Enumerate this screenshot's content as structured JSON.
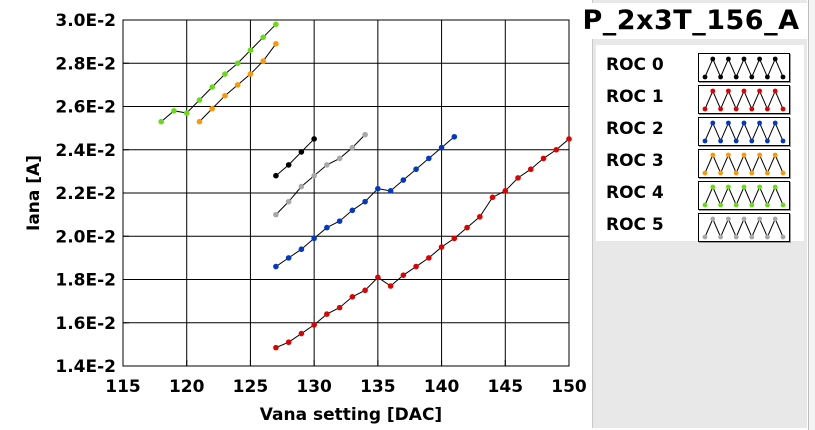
{
  "title": "P_2x3T_156_A",
  "legend": [
    {
      "label": "ROC 0",
      "color": "#000000"
    },
    {
      "label": "ROC 1",
      "color": "#e00000"
    },
    {
      "label": "ROC 2",
      "color": "#0038c8"
    },
    {
      "label": "ROC 3",
      "color": "#ff9800"
    },
    {
      "label": "ROC 4",
      "color": "#66dd11"
    },
    {
      "label": "ROC 5",
      "color": "#a8a8a8"
    }
  ],
  "chart_data": {
    "type": "line",
    "xlabel": "Vana setting [DAC]",
    "ylabel": "Iana [A]",
    "xlim": [
      115,
      150
    ],
    "ylim": [
      0.014,
      0.03
    ],
    "xticks": [
      "115",
      "120",
      "125",
      "130",
      "135",
      "140",
      "145",
      "150"
    ],
    "yticks": [
      "1.4E-2",
      "1.6E-2",
      "1.8E-2",
      "2.0E-2",
      "2.2E-2",
      "2.4E-2",
      "2.6E-2",
      "2.8E-2",
      "3.0E-2"
    ],
    "grid": true,
    "series": [
      {
        "name": "ROC 0",
        "color": "#000000",
        "x": [
          127,
          128,
          129,
          130
        ],
        "y": [
          0.0228,
          0.0233,
          0.0239,
          0.0245
        ]
      },
      {
        "name": "ROC 1",
        "color": "#e00000",
        "x": [
          127,
          128,
          129,
          130,
          131,
          132,
          133,
          134,
          135,
          136,
          137,
          138,
          139,
          140,
          141,
          142,
          143,
          144,
          145,
          146,
          147,
          148,
          149,
          150
        ],
        "y": [
          0.01485,
          0.0151,
          0.0155,
          0.0159,
          0.0164,
          0.0167,
          0.0172,
          0.0175,
          0.0181,
          0.0177,
          0.0182,
          0.0186,
          0.019,
          0.0195,
          0.0199,
          0.0204,
          0.0209,
          0.0218,
          0.0221,
          0.0227,
          0.0231,
          0.0236,
          0.024,
          0.0245
        ]
      },
      {
        "name": "ROC 2",
        "color": "#0038c8",
        "x": [
          127,
          128,
          129,
          130,
          131,
          132,
          133,
          134,
          135,
          136,
          137,
          138,
          139,
          140,
          141
        ],
        "y": [
          0.0186,
          0.019,
          0.0194,
          0.0199,
          0.0204,
          0.0207,
          0.0212,
          0.0216,
          0.0222,
          0.0221,
          0.0226,
          0.0231,
          0.0236,
          0.0241,
          0.0246
        ]
      },
      {
        "name": "ROC 3",
        "color": "#ff9800",
        "x": [
          121,
          122,
          123,
          124,
          125,
          126,
          127
        ],
        "y": [
          0.0253,
          0.0259,
          0.0265,
          0.027,
          0.0275,
          0.0281,
          0.0289
        ]
      },
      {
        "name": "ROC 4",
        "color": "#66dd11",
        "x": [
          118,
          119,
          120,
          121,
          122,
          123,
          124,
          125,
          126,
          127
        ],
        "y": [
          0.0253,
          0.0258,
          0.0257,
          0.0263,
          0.0269,
          0.0275,
          0.028,
          0.0286,
          0.0292,
          0.0298
        ]
      },
      {
        "name": "ROC 5",
        "color": "#a8a8a8",
        "x": [
          127,
          128,
          129,
          130,
          131,
          132,
          133,
          134
        ],
        "y": [
          0.021,
          0.0216,
          0.0223,
          0.0228,
          0.0233,
          0.0236,
          0.0241,
          0.0247
        ]
      }
    ]
  }
}
